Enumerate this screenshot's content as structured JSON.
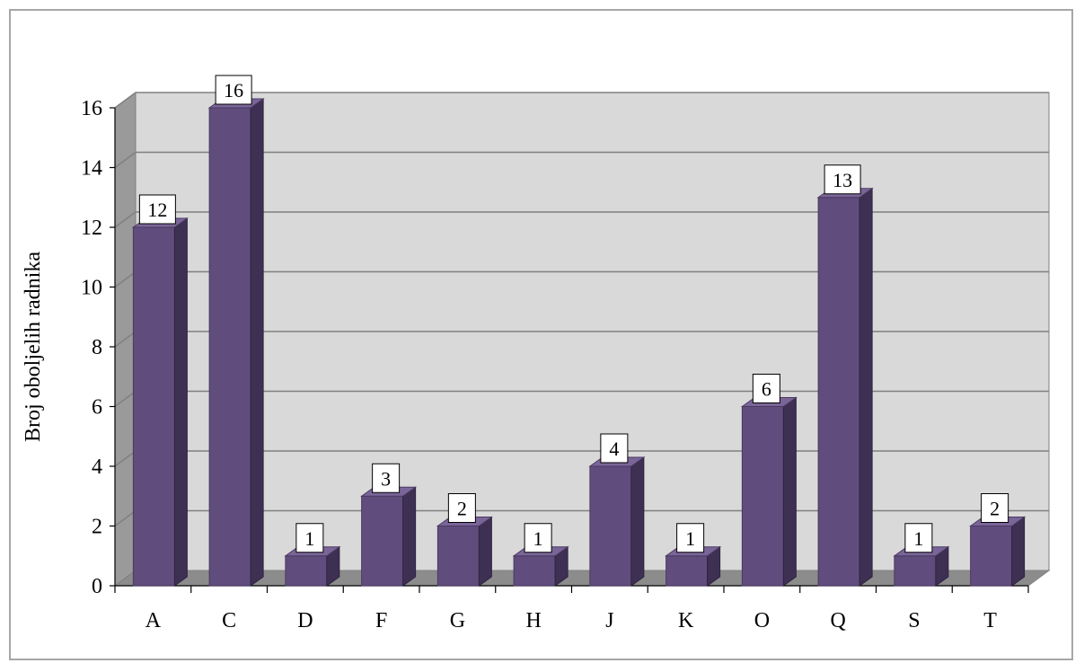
{
  "chart_data": {
    "type": "bar",
    "categories": [
      "A",
      "C",
      "D",
      "F",
      "G",
      "H",
      "J",
      "K",
      "O",
      "Q",
      "S",
      "T"
    ],
    "values": [
      12,
      16,
      1,
      3,
      2,
      1,
      4,
      1,
      6,
      13,
      1,
      2
    ],
    "title": "",
    "xlabel": "",
    "ylabel": "Broj oboljelih radnika",
    "ylim": [
      0,
      16
    ],
    "yticks": [
      0,
      2,
      4,
      6,
      8,
      10,
      12,
      14,
      16
    ],
    "grid": true,
    "legend": "none",
    "data_labels": true,
    "style": "3d-column"
  },
  "colors": {
    "bar_front": "#614c7e",
    "bar_side": "#3e3052",
    "bar_top": "#7a6599",
    "plot_back": "#d9d9d9",
    "side_wall": "#9a9a9a",
    "floor": "#8c8c8c",
    "gridline": "#808080"
  }
}
